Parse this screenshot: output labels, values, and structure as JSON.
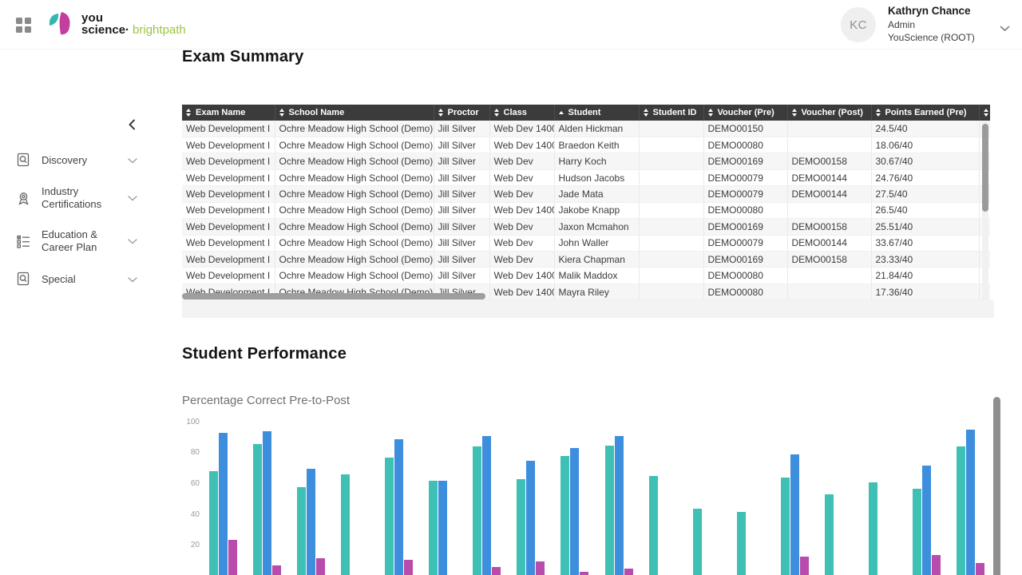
{
  "header": {
    "logo": {
      "word1": "you",
      "word2": "science·",
      "word3": "brightpath"
    },
    "user": {
      "initials": "KC",
      "name": "Kathryn Chance",
      "role": "Admin",
      "org": "YouScience (ROOT)"
    }
  },
  "sidebar": {
    "items": [
      {
        "label": "Discovery",
        "icon": "discovery-icon"
      },
      {
        "label": "Industry Certifications",
        "icon": "certificate-icon"
      },
      {
        "label": "Education & Career Plan",
        "icon": "checklist-icon"
      },
      {
        "label": "Special",
        "icon": "special-icon"
      }
    ]
  },
  "sections": {
    "exam_summary_title": "Exam Summary",
    "student_performance_title": "Student Performance"
  },
  "table": {
    "columns": [
      {
        "label": "Exam Name",
        "sort": "both"
      },
      {
        "label": "School Name",
        "sort": "both"
      },
      {
        "label": "Proctor",
        "sort": "both"
      },
      {
        "label": "Class",
        "sort": "both"
      },
      {
        "label": "Student",
        "sort": "asc"
      },
      {
        "label": "Student ID",
        "sort": "both"
      },
      {
        "label": "Voucher (Pre)",
        "sort": "both"
      },
      {
        "label": "Voucher (Post)",
        "sort": "both"
      },
      {
        "label": "Points Earned (Pre)",
        "sort": "both"
      },
      {
        "label": "",
        "sort": "both"
      }
    ],
    "rows": [
      [
        "Web Development I",
        "Ochre Meadow High School (Demo)",
        "Jill Silver",
        "Web Dev 1400",
        "Alden Hickman",
        "",
        "DEMO00150",
        "",
        "24.5/40"
      ],
      [
        "Web Development I",
        "Ochre Meadow High School (Demo)",
        "Jill Silver",
        "Web Dev 1400",
        "Braedon Keith",
        "",
        "DEMO00080",
        "",
        "18.06/40"
      ],
      [
        "Web Development I",
        "Ochre Meadow High School (Demo)",
        "Jill Silver",
        "Web Dev",
        "Harry Koch",
        "",
        "DEMO00169",
        "DEMO00158",
        "30.67/40"
      ],
      [
        "Web Development I",
        "Ochre Meadow High School (Demo)",
        "Jill Silver",
        "Web Dev",
        "Hudson Jacobs",
        "",
        "DEMO00079",
        "DEMO00144",
        "24.76/40"
      ],
      [
        "Web Development I",
        "Ochre Meadow High School (Demo)",
        "Jill Silver",
        "Web Dev",
        "Jade Mata",
        "",
        "DEMO00079",
        "DEMO00144",
        "27.5/40"
      ],
      [
        "Web Development I",
        "Ochre Meadow High School (Demo)",
        "Jill Silver",
        "Web Dev 1400",
        "Jakobe Knapp",
        "",
        "DEMO00080",
        "",
        "26.5/40"
      ],
      [
        "Web Development I",
        "Ochre Meadow High School (Demo)",
        "Jill Silver",
        "Web Dev",
        "Jaxon Mcmahon",
        "",
        "DEMO00169",
        "DEMO00158",
        "25.51/40"
      ],
      [
        "Web Development I",
        "Ochre Meadow High School (Demo)",
        "Jill Silver",
        "Web Dev",
        "John Waller",
        "",
        "DEMO00079",
        "DEMO00144",
        "33.67/40"
      ],
      [
        "Web Development I",
        "Ochre Meadow High School (Demo)",
        "Jill Silver",
        "Web Dev",
        "Kiera Chapman",
        "",
        "DEMO00169",
        "DEMO00158",
        "23.33/40"
      ],
      [
        "Web Development I",
        "Ochre Meadow High School (Demo)",
        "Jill Silver",
        "Web Dev 1400",
        "Malik Maddox",
        "",
        "DEMO00080",
        "",
        "21.84/40"
      ],
      [
        "Web Development I",
        "Ochre Meadow High School (Demo)",
        "Jill Silver",
        "Web Dev 1400",
        "Mayra Riley",
        "",
        "DEMO00080",
        "",
        "17.36/40"
      ]
    ]
  },
  "chart_data": {
    "type": "bar",
    "title": "Percentage Correct Pre-to-Post",
    "xlabel": "",
    "ylabel": "",
    "ylim": [
      0,
      100
    ],
    "yticks": [
      20,
      40,
      60,
      80,
      100
    ],
    "grid": false,
    "legend_visible": false,
    "group_count": 18,
    "series": [
      {
        "name": "series-1-teal",
        "color": "#3ec0b4",
        "values": [
          68,
          86,
          58,
          66,
          77,
          62,
          84,
          63,
          78,
          85,
          65,
          44,
          42,
          64,
          53,
          61,
          57,
          84
        ]
      },
      {
        "name": "series-2-blue",
        "color": "#3e8ede",
        "values": [
          93,
          94,
          70,
          null,
          89,
          62,
          91,
          75,
          83,
          91,
          null,
          null,
          null,
          79,
          null,
          null,
          72,
          95
        ]
      },
      {
        "name": "series-3-magenta",
        "color": "#b94bac",
        "values": [
          24,
          7,
          12,
          null,
          11,
          null,
          6,
          10,
          3,
          5,
          null,
          null,
          null,
          13,
          null,
          null,
          14,
          9
        ]
      }
    ]
  },
  "colors": {
    "brand_green": "#9bc53f",
    "brand_teal": "#33b8ae",
    "brand_magenta": "#c33f9f",
    "table_header_bg": "#3b3b3b"
  }
}
